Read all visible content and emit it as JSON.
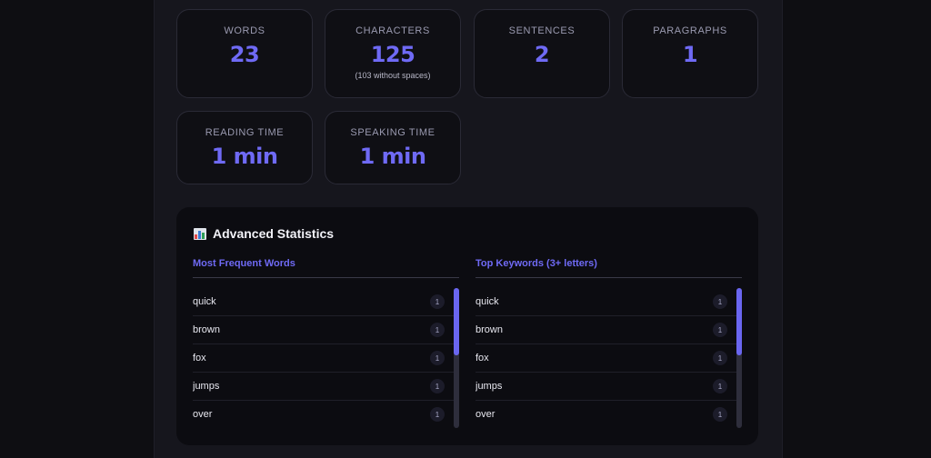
{
  "stats": [
    {
      "label": "WORDS",
      "value": "23",
      "sub": ""
    },
    {
      "label": "CHARACTERS",
      "value": "125",
      "sub": "(103 without spaces)"
    },
    {
      "label": "SENTENCES",
      "value": "2",
      "sub": ""
    },
    {
      "label": "PARAGRAPHS",
      "value": "1",
      "sub": ""
    },
    {
      "label": "READING TIME",
      "value": "1 min",
      "sub": ""
    },
    {
      "label": "SPEAKING TIME",
      "value": "1 min",
      "sub": ""
    }
  ],
  "advanced": {
    "icon": "bar-chart-icon",
    "title": "Advanced Statistics",
    "frequent": {
      "heading": "Most Frequent Words",
      "items": [
        {
          "word": "quick",
          "count": "1"
        },
        {
          "word": "brown",
          "count": "1"
        },
        {
          "word": "fox",
          "count": "1"
        },
        {
          "word": "jumps",
          "count": "1"
        },
        {
          "word": "over",
          "count": "1"
        }
      ]
    },
    "keywords": {
      "heading": "Top Keywords (3+ letters)",
      "items": [
        {
          "word": "quick",
          "count": "1"
        },
        {
          "word": "brown",
          "count": "1"
        },
        {
          "word": "fox",
          "count": "1"
        },
        {
          "word": "jumps",
          "count": "1"
        },
        {
          "word": "over",
          "count": "1"
        }
      ]
    }
  },
  "colors": {
    "accent": "#6f6af5",
    "background": "#0e0e12",
    "card": "#0f0f14"
  }
}
